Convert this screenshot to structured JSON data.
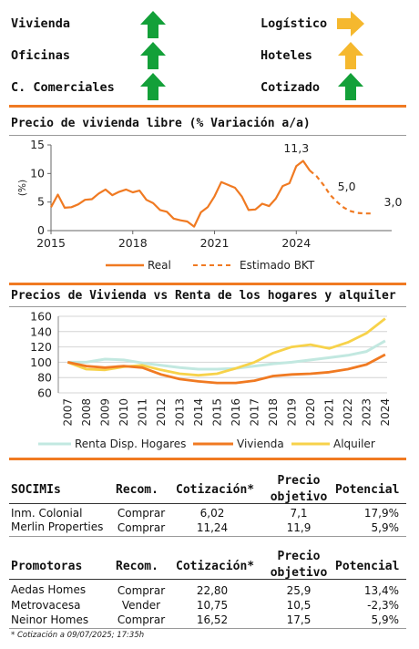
{
  "sectors": [
    {
      "label": "Vivienda",
      "trend": "up",
      "arrow_color": "#13a039"
    },
    {
      "label": "Oficinas",
      "trend": "up",
      "arrow_color": "#13a039"
    },
    {
      "label": "C. Comerciales",
      "trend": "up",
      "arrow_color": "#13a039"
    },
    {
      "label": "Logístico",
      "trend": "right",
      "arrow_color": "#f5b82e"
    },
    {
      "label": "Hoteles",
      "trend": "up",
      "arrow_color": "#f5b82e"
    },
    {
      "label": "Cotizado",
      "trend": "up",
      "arrow_color": "#13a039"
    }
  ],
  "chart_data": [
    {
      "type": "line",
      "title": "Precio de vivienda libre (% Variación a/a)",
      "ylabel": "(%)",
      "ylim": [
        0,
        15
      ],
      "yticks": [
        "0",
        "5",
        "10",
        "15"
      ],
      "xticks": [
        "2015",
        "2018",
        "2021",
        "2024"
      ],
      "xlim": [
        2015,
        2027.5
      ],
      "series": [
        {
          "name": "Real",
          "color": "#f07a22",
          "style": "solid",
          "x": [
            2015.0,
            2015.25,
            2015.5,
            2015.75,
            2016.0,
            2016.25,
            2016.5,
            2016.75,
            2017.0,
            2017.25,
            2017.5,
            2017.75,
            2018.0,
            2018.25,
            2018.5,
            2018.75,
            2019.0,
            2019.25,
            2019.5,
            2019.75,
            2020.0,
            2020.25,
            2020.5,
            2020.75,
            2021.0,
            2021.25,
            2021.5,
            2021.75,
            2022.0,
            2022.25,
            2022.5,
            2022.75,
            2023.0,
            2023.25,
            2023.5,
            2023.75,
            2024.0,
            2024.25,
            2024.5
          ],
          "values": [
            4.1,
            6.3,
            4.0,
            4.1,
            4.6,
            5.4,
            5.5,
            6.5,
            7.2,
            6.2,
            6.8,
            7.2,
            6.7,
            7.0,
            5.4,
            4.8,
            3.6,
            3.3,
            2.1,
            1.8,
            1.6,
            0.7,
            3.2,
            4.1,
            6.0,
            8.5,
            8.0,
            7.5,
            6.0,
            3.6,
            3.7,
            4.7,
            4.3,
            5.6,
            7.8,
            8.3,
            11.3,
            12.2,
            10.5
          ]
        },
        {
          "name": "Estimado BKT",
          "color": "#f07a22",
          "style": "dashed",
          "x": [
            2024.5,
            2024.75,
            2025.0,
            2025.25,
            2025.5,
            2025.75,
            2026.0,
            2026.25,
            2026.5,
            2026.75
          ],
          "values": [
            10.5,
            9.5,
            8.0,
            6.2,
            5.0,
            4.0,
            3.4,
            3.1,
            3.0,
            3.0
          ]
        }
      ],
      "annotations": [
        "11,3",
        "5,0",
        "3,0"
      ]
    },
    {
      "type": "line",
      "title": "Precios de Vivienda vs Renta de los hogares y alquiler",
      "ylim": [
        60,
        160
      ],
      "yticks": [
        "60",
        "80",
        "100",
        "120",
        "140",
        "160"
      ],
      "categories": [
        "2007",
        "2008",
        "2009",
        "2010",
        "2011",
        "2012",
        "2013",
        "2014",
        "2015",
        "2016",
        "2017",
        "2018",
        "2019",
        "2020",
        "2021",
        "2022",
        "2023",
        "2024"
      ],
      "series": [
        {
          "name": "Renta Disp. Hogares",
          "color": "#c2e8e0",
          "values": [
            100,
            100,
            104,
            103,
            99,
            96,
            93,
            91,
            91,
            92,
            95,
            98,
            100,
            103,
            106,
            109,
            114,
            128
          ]
        },
        {
          "name": "Vivienda",
          "color": "#f07a22",
          "values": [
            100,
            95,
            93,
            95,
            93,
            84,
            78,
            75,
            73,
            73,
            76,
            82,
            84,
            85,
            87,
            91,
            97,
            110
          ]
        },
        {
          "name": "Alquiler",
          "color": "#f7d24a",
          "values": [
            100,
            91,
            90,
            94,
            96,
            90,
            85,
            83,
            85,
            92,
            100,
            112,
            120,
            123,
            118,
            126,
            138,
            157
          ]
        }
      ]
    }
  ],
  "socimis": {
    "headers": {
      "name": "SOCIMIs",
      "recom": "Recom.",
      "cot": "Cotización*",
      "target_1": "Precio",
      "target_2": "objetivo",
      "pot": "Potencial"
    },
    "rows": [
      {
        "name": "Inm. Colonial",
        "recom": "Comprar",
        "cot": "6,02",
        "target": "7,1",
        "pot": "17,9%"
      },
      {
        "name": "Merlin Properties",
        "recom": "Comprar",
        "cot": "11,24",
        "target": "11,9",
        "pot": "5,9%"
      }
    ]
  },
  "promotoras": {
    "headers": {
      "name": "Promotoras",
      "recom": "Recom.",
      "cot": "Cotización*",
      "target_1": "Precio",
      "target_2": "objetivo",
      "pot": "Potencial"
    },
    "rows": [
      {
        "name": "Aedas Homes",
        "recom": "Comprar",
        "cot": "22,80",
        "target": "25,9",
        "pot": "13,4%"
      },
      {
        "name": "Metrovacesa",
        "recom": "Vender",
        "cot": "10,75",
        "target": "10,5",
        "pot": "-2,3%"
      },
      {
        "name": "Neinor Homes",
        "recom": "Comprar",
        "cot": "16,52",
        "target": "17,5",
        "pot": "5,9%"
      }
    ]
  },
  "footnote": "* Cotización a 09/07/2025; 17:35h"
}
